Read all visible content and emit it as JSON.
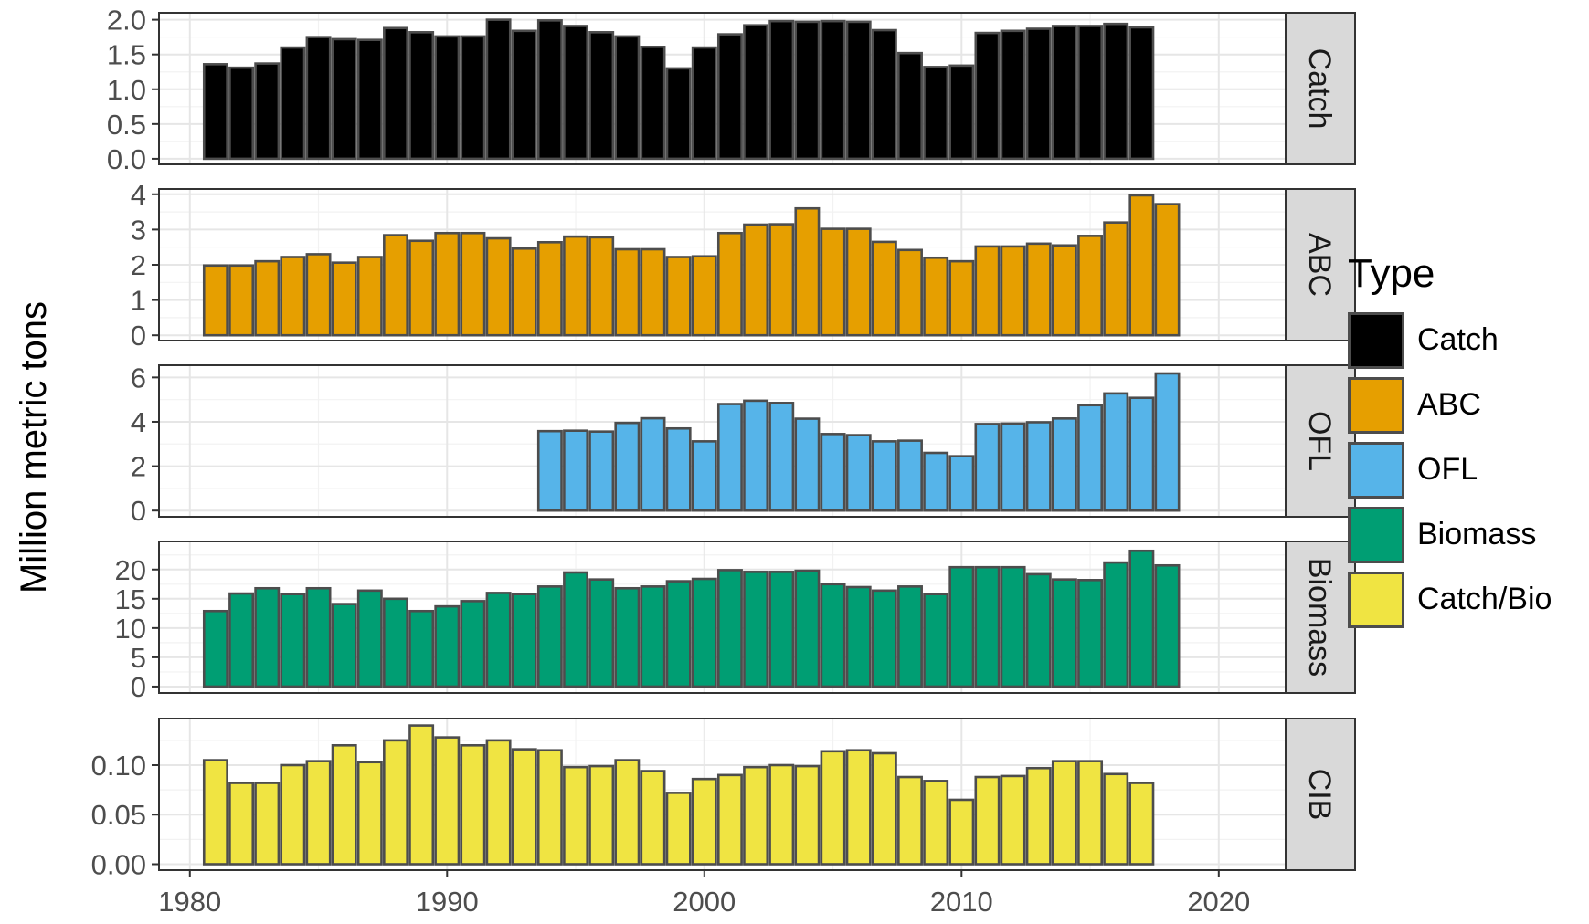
{
  "chart_data": {
    "type": "bar",
    "ylabel": "Million metric tons",
    "xlim": [
      1978.8,
      2022.6
    ],
    "x_ticks": [
      "1980",
      "1990",
      "2000",
      "2010",
      "2020"
    ],
    "legend": {
      "title": "Type",
      "placement": "right"
    },
    "grid": true,
    "panels": [
      {
        "strip": "Catch",
        "type_name": "Catch",
        "color": "#000000",
        "ylim": [
          -0.08,
          2.1
        ],
        "y_ticks": [
          "0.0",
          "0.5",
          "1.0",
          "1.5",
          "2.0"
        ],
        "x": [
          1981,
          1982,
          1983,
          1984,
          1985,
          1986,
          1987,
          1988,
          1989,
          1990,
          1991,
          1992,
          1993,
          1994,
          1995,
          1996,
          1997,
          1998,
          1999,
          2000,
          2001,
          2002,
          2003,
          2004,
          2005,
          2006,
          2007,
          2008,
          2009,
          2010,
          2011,
          2012,
          2013,
          2014,
          2015,
          2016,
          2017
        ],
        "values": [
          1.36,
          1.31,
          1.37,
          1.6,
          1.75,
          1.72,
          1.71,
          1.88,
          1.82,
          1.76,
          1.76,
          2.0,
          1.84,
          1.99,
          1.91,
          1.82,
          1.76,
          1.61,
          1.3,
          1.6,
          1.79,
          1.92,
          1.98,
          1.97,
          1.98,
          1.97,
          1.85,
          1.52,
          1.32,
          1.34,
          1.81,
          1.84,
          1.87,
          1.91,
          1.91,
          1.94,
          1.89
        ]
      },
      {
        "strip": "ABC",
        "type_name": "ABC",
        "color": "#e69f00",
        "ylim": [
          -0.15,
          4.15
        ],
        "y_ticks": [
          "0",
          "1",
          "2",
          "3",
          "4"
        ],
        "x": [
          1981,
          1982,
          1983,
          1984,
          1985,
          1986,
          1987,
          1988,
          1989,
          1990,
          1991,
          1992,
          1993,
          1994,
          1995,
          1996,
          1997,
          1998,
          1999,
          2000,
          2001,
          2002,
          2003,
          2004,
          2005,
          2006,
          2007,
          2008,
          2009,
          2010,
          2011,
          2012,
          2013,
          2014,
          2015,
          2016,
          2017,
          2018
        ],
        "values": [
          1.98,
          1.98,
          2.1,
          2.22,
          2.3,
          2.06,
          2.22,
          2.84,
          2.68,
          2.9,
          2.9,
          2.75,
          2.46,
          2.64,
          2.8,
          2.78,
          2.44,
          2.44,
          2.22,
          2.24,
          2.9,
          3.14,
          3.15,
          3.6,
          3.02,
          3.02,
          2.65,
          2.42,
          2.2,
          2.1,
          2.52,
          2.52,
          2.6,
          2.55,
          2.82,
          3.2,
          3.97,
          3.72
        ]
      },
      {
        "strip": "OFL",
        "type_name": "OFL",
        "color": "#56b4e9",
        "ylim": [
          -0.28,
          6.55
        ],
        "y_ticks": [
          "0",
          "2",
          "4",
          "6"
        ],
        "x": [
          1994,
          1995,
          1996,
          1997,
          1998,
          1999,
          2000,
          2001,
          2002,
          2003,
          2004,
          2005,
          2006,
          2007,
          2008,
          2009,
          2010,
          2011,
          2012,
          2013,
          2014,
          2015,
          2016,
          2017,
          2018
        ],
        "values": [
          3.58,
          3.6,
          3.56,
          3.95,
          4.16,
          3.7,
          3.12,
          4.8,
          4.95,
          4.85,
          4.14,
          3.45,
          3.4,
          3.12,
          3.15,
          2.6,
          2.45,
          3.9,
          3.92,
          3.98,
          4.15,
          4.75,
          5.28,
          5.08,
          6.18
        ]
      },
      {
        "strip": "Biomass",
        "type_name": "Biomass",
        "color": "#009e73",
        "ylim": [
          -1.1,
          24.8
        ],
        "y_ticks": [
          "0",
          "5",
          "10",
          "15",
          "20"
        ],
        "x": [
          1981,
          1982,
          1983,
          1984,
          1985,
          1986,
          1987,
          1988,
          1989,
          1990,
          1991,
          1992,
          1993,
          1994,
          1995,
          1996,
          1997,
          1998,
          1999,
          2000,
          2001,
          2002,
          2003,
          2004,
          2005,
          2006,
          2007,
          2008,
          2009,
          2010,
          2011,
          2012,
          2013,
          2014,
          2015,
          2016,
          2017,
          2018
        ],
        "values": [
          12.9,
          15.9,
          16.8,
          15.8,
          16.8,
          14.1,
          16.4,
          15.0,
          12.9,
          13.7,
          14.6,
          16.0,
          15.8,
          17.1,
          19.5,
          18.3,
          16.8,
          17.1,
          18.0,
          18.4,
          19.9,
          19.6,
          19.6,
          19.8,
          17.5,
          17.0,
          16.4,
          17.1,
          15.8,
          20.4,
          20.4,
          20.4,
          19.2,
          18.3,
          18.2,
          21.2,
          23.2,
          20.7
        ]
      },
      {
        "strip": "CIB",
        "type_name": "Catch/Bio",
        "color": "#f0e442",
        "ylim": [
          -0.006,
          0.147
        ],
        "y_ticks": [
          "0.00",
          "0.05",
          "0.10"
        ],
        "x": [
          1981,
          1982,
          1983,
          1984,
          1985,
          1986,
          1987,
          1988,
          1989,
          1990,
          1991,
          1992,
          1993,
          1994,
          1995,
          1996,
          1997,
          1998,
          1999,
          2000,
          2001,
          2002,
          2003,
          2004,
          2005,
          2006,
          2007,
          2008,
          2009,
          2010,
          2011,
          2012,
          2013,
          2014,
          2015,
          2016,
          2017
        ],
        "values": [
          0.105,
          0.082,
          0.082,
          0.1,
          0.104,
          0.12,
          0.103,
          0.125,
          0.14,
          0.128,
          0.12,
          0.125,
          0.116,
          0.115,
          0.098,
          0.099,
          0.105,
          0.094,
          0.072,
          0.086,
          0.09,
          0.098,
          0.1,
          0.099,
          0.114,
          0.115,
          0.112,
          0.088,
          0.084,
          0.065,
          0.088,
          0.089,
          0.097,
          0.104,
          0.104,
          0.091,
          0.082
        ]
      }
    ]
  }
}
